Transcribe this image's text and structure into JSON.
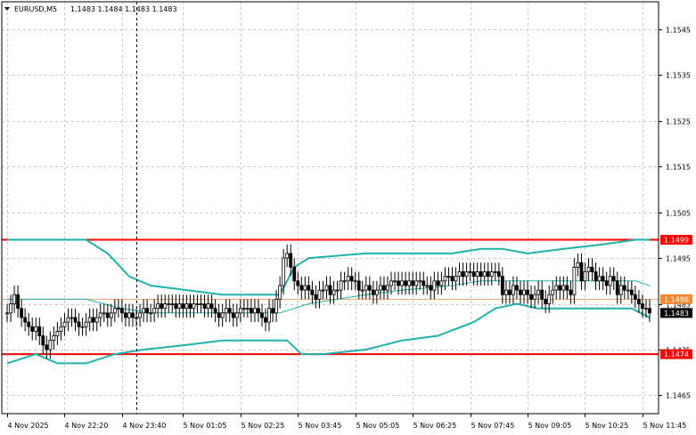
{
  "header": {
    "symbol": "EURUSD,M5",
    "quote": "1.1483 1.1484 1.1483 1.1483"
  },
  "colors": {
    "background": "#ffffff",
    "grid": "#c8c8c8",
    "axis": "#000000",
    "bullish_body": "#ffffff",
    "bearish_body": "#000000",
    "band": "#20b2aa",
    "level_line": "#ff0000",
    "current_line": "#f0a060",
    "badge_red": "#ff0000",
    "badge_current": "#000000",
    "badge_orange": "#f28a32",
    "vertical_marker": "#000000"
  },
  "chart_data": {
    "type": "candlestick",
    "title": "EURUSD,M5",
    "ylim": [
      1.1461,
      1.1551
    ],
    "y_ticks": [
      "1.1545",
      "1.1535",
      "1.1525",
      "1.1515",
      "1.1505",
      "1.1495",
      "1.1485",
      "1.1475",
      "1.1465"
    ],
    "y_tick_values": [
      1.1545,
      1.1535,
      1.1525,
      1.1515,
      1.1505,
      1.1495,
      1.1485,
      1.1475,
      1.1465
    ],
    "x_ticks": [
      "4 Nov 2025",
      "4 Nov 22:20",
      "4 Nov 23:40",
      "5 Nov 01:05",
      "5 Nov 02:25",
      "5 Nov 03:45",
      "5 Nov 05:05",
      "5 Nov 06:25",
      "5 Nov 07:45",
      "5 Nov 09:05",
      "5 Nov 10:25",
      "5 Nov 11:45"
    ],
    "x_tick_bars": [
      0,
      16,
      32,
      49,
      65,
      81,
      97,
      113,
      129,
      145,
      161,
      177
    ],
    "bar_count": 180,
    "marker_bar": 36,
    "closes": [
      1.1483,
      1.1485,
      1.1487,
      1.1484,
      1.1482,
      1.1481,
      1.148,
      1.1479,
      1.148,
      1.1478,
      1.1476,
      1.1475,
      1.1477,
      1.1478,
      1.1479,
      1.148,
      1.1481,
      1.1482,
      1.1482,
      1.1481,
      1.148,
      1.148,
      1.1481,
      1.1482,
      1.1481,
      1.1482,
      1.1483,
      1.1483,
      1.1482,
      1.1483,
      1.1484,
      1.1484,
      1.1483,
      1.1482,
      1.1483,
      1.1482,
      1.1482,
      1.1483,
      1.1484,
      1.1483,
      1.1483,
      1.1484,
      1.1485,
      1.1484,
      1.1485,
      1.1485,
      1.1485,
      1.1484,
      1.1485,
      1.1484,
      1.1485,
      1.1484,
      1.1485,
      1.1485,
      1.1485,
      1.1484,
      1.1485,
      1.1484,
      1.1483,
      1.1482,
      1.1483,
      1.1484,
      1.1483,
      1.1482,
      1.1483,
      1.1484,
      1.1484,
      1.1484,
      1.1483,
      1.1484,
      1.1483,
      1.1482,
      1.1481,
      1.1484,
      1.1483,
      1.1486,
      1.1489,
      1.1495,
      1.1496,
      1.1493,
      1.149,
      1.1489,
      1.1488,
      1.1489,
      1.1488,
      1.1487,
      1.1486,
      1.1488,
      1.1488,
      1.1489,
      1.1487,
      1.1488,
      1.1488,
      1.149,
      1.149,
      1.1491,
      1.149,
      1.149,
      1.1488,
      1.1488,
      1.1489,
      1.1488,
      1.1487,
      1.1488,
      1.1489,
      1.1488,
      1.1489,
      1.149,
      1.149,
      1.1489,
      1.149,
      1.1489,
      1.149,
      1.1489,
      1.149,
      1.149,
      1.1489,
      1.1489,
      1.1488,
      1.149,
      1.1489,
      1.149,
      1.1491,
      1.1491,
      1.149,
      1.1491,
      1.1492,
      1.1491,
      1.1492,
      1.1492,
      1.1491,
      1.1492,
      1.1491,
      1.1492,
      1.1491,
      1.1492,
      1.1492,
      1.1491,
      1.1487,
      1.1488,
      1.1487,
      1.1489,
      1.1488,
      1.1487,
      1.1488,
      1.1487,
      1.1486,
      1.1487,
      1.1488,
      1.1486,
      1.1485,
      1.1487,
      1.1488,
      1.1489,
      1.1488,
      1.1489,
      1.1488,
      1.1487,
      1.1493,
      1.1494,
      1.149,
      1.1492,
      1.1493,
      1.1492,
      1.149,
      1.1491,
      1.149,
      1.1489,
      1.1491,
      1.149,
      1.1487,
      1.1489,
      1.1488,
      1.1488,
      1.1487,
      1.1486,
      1.1485,
      1.1484,
      1.1484,
      1.1483
    ],
    "bollinger": {
      "upper": [
        [
          0,
          1.1499
        ],
        [
          8,
          1.1499
        ],
        [
          22,
          1.1499
        ],
        [
          28,
          1.1496
        ],
        [
          34,
          1.1491
        ],
        [
          40,
          1.1489
        ],
        [
          50,
          1.1488
        ],
        [
          60,
          1.1487
        ],
        [
          70,
          1.1487
        ],
        [
          76,
          1.1487
        ],
        [
          80,
          1.1493
        ],
        [
          84,
          1.1495
        ],
        [
          100,
          1.1496
        ],
        [
          110,
          1.1496
        ],
        [
          124,
          1.1496
        ],
        [
          132,
          1.1497
        ],
        [
          138,
          1.1497
        ],
        [
          145,
          1.1496
        ],
        [
          155,
          1.1497
        ],
        [
          166,
          1.1498
        ],
        [
          175,
          1.1499
        ],
        [
          179,
          1.1499
        ]
      ],
      "middle": [
        [
          0,
          1.1486
        ],
        [
          8,
          1.1486
        ],
        [
          22,
          1.1486
        ],
        [
          32,
          1.1484
        ],
        [
          40,
          1.1483
        ],
        [
          50,
          1.1483
        ],
        [
          60,
          1.1483
        ],
        [
          70,
          1.1483
        ],
        [
          76,
          1.1483
        ],
        [
          84,
          1.1485
        ],
        [
          100,
          1.1487
        ],
        [
          110,
          1.1488
        ],
        [
          124,
          1.1489
        ],
        [
          132,
          1.149
        ],
        [
          140,
          1.149
        ],
        [
          150,
          1.149
        ],
        [
          158,
          1.149
        ],
        [
          166,
          1.149
        ],
        [
          175,
          1.149
        ],
        [
          179,
          1.1489
        ]
      ],
      "lower": [
        [
          0,
          1.1472
        ],
        [
          8,
          1.1474
        ],
        [
          14,
          1.1472
        ],
        [
          22,
          1.1472
        ],
        [
          30,
          1.1474
        ],
        [
          38,
          1.1475
        ],
        [
          50,
          1.1476
        ],
        [
          60,
          1.1477
        ],
        [
          70,
          1.1477
        ],
        [
          78,
          1.1477
        ],
        [
          82,
          1.1474
        ],
        [
          88,
          1.1474
        ],
        [
          100,
          1.1475
        ],
        [
          110,
          1.1477
        ],
        [
          120,
          1.1478
        ],
        [
          130,
          1.1481
        ],
        [
          136,
          1.1484
        ],
        [
          142,
          1.1485
        ],
        [
          148,
          1.1484
        ],
        [
          156,
          1.1484
        ],
        [
          166,
          1.1484
        ],
        [
          174,
          1.1484
        ],
        [
          179,
          1.1482
        ]
      ]
    },
    "levels": [
      {
        "value": 1.1499,
        "label": "1.1499",
        "kind": "resistance"
      },
      {
        "value": 1.1486,
        "label": "1.1486",
        "kind": "reference"
      },
      {
        "value": 1.1474,
        "label": "1.1474",
        "kind": "support"
      }
    ],
    "current_price": {
      "value": 1.1483,
      "label": "1.1483"
    }
  }
}
